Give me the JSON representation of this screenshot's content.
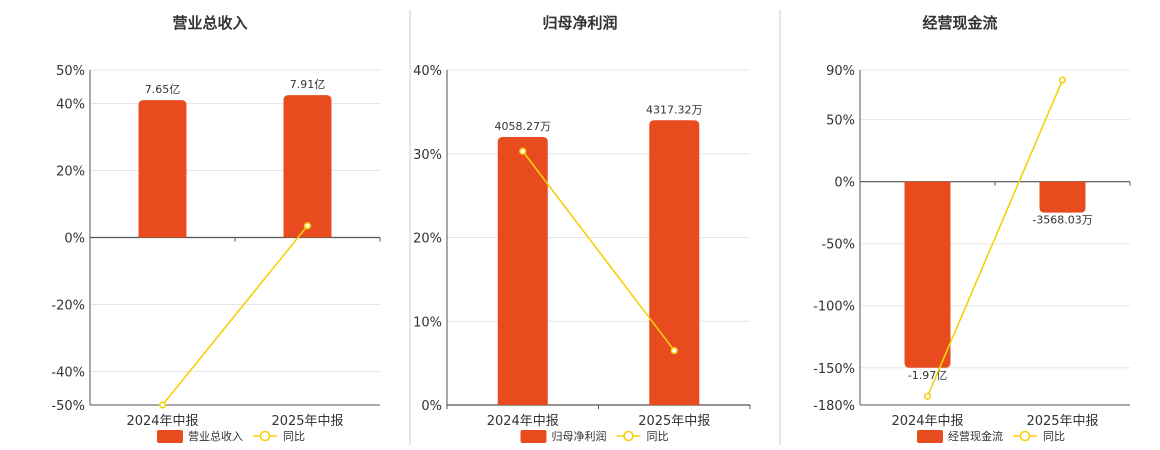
{
  "colors": {
    "bar": "#e84c1e",
    "line": "#f5d10b",
    "grid": "#e6e6e6",
    "axis": "#555555",
    "divider": "#cccccc"
  },
  "chart_data": [
    {
      "type": "bar",
      "title": "营业总收入",
      "categories": [
        "2024年中报",
        "2025年中报"
      ],
      "bar_axis": {
        "ticks": [
          "50%",
          "40%",
          "20%",
          "0%",
          "-20%",
          "-40%",
          "-50%"
        ],
        "values": [
          50,
          40,
          20,
          0,
          -20,
          -40,
          -50
        ],
        "ylim": [
          -50,
          50
        ]
      },
      "series": [
        {
          "name": "营业总收入",
          "kind": "bar",
          "values": [
            41,
            42.5
          ],
          "labels": [
            "7.65亿",
            "7.91亿"
          ]
        },
        {
          "name": "同比",
          "kind": "line",
          "values": [
            -50,
            3.5
          ]
        }
      ],
      "grid": true,
      "legend": "bottom"
    },
    {
      "type": "bar",
      "title": "归母净利润",
      "categories": [
        "2024年中报",
        "2025年中报"
      ],
      "bar_axis": {
        "ticks": [
          "40%",
          "30%",
          "20%",
          "10%",
          "0%"
        ],
        "values": [
          40,
          30,
          20,
          10,
          0
        ],
        "ylim": [
          0,
          40
        ]
      },
      "series": [
        {
          "name": "归母净利润",
          "kind": "bar",
          "values": [
            32,
            34
          ],
          "labels": [
            "4058.27万",
            "4317.32万"
          ]
        },
        {
          "name": "同比",
          "kind": "line",
          "values": [
            30.3,
            6.5
          ]
        }
      ],
      "grid": true,
      "legend": "bottom"
    },
    {
      "type": "bar",
      "title": "经营现金流",
      "categories": [
        "2024年中报",
        "2025年中报"
      ],
      "bar_axis": {
        "ticks": [
          "90%",
          "50%",
          "0%",
          "-50%",
          "-100%",
          "-150%",
          "-180%"
        ],
        "values": [
          90,
          50,
          0,
          -50,
          -100,
          -150,
          -180
        ],
        "ylim": [
          -180,
          90
        ]
      },
      "series": [
        {
          "name": "经营现金流",
          "kind": "bar",
          "values": [
            -150,
            -25
          ],
          "labels": [
            "-1.97亿",
            "-3568.03万"
          ]
        },
        {
          "name": "同比",
          "kind": "line",
          "values": [
            -173,
            82
          ]
        }
      ],
      "grid": true,
      "legend": "bottom"
    }
  ]
}
